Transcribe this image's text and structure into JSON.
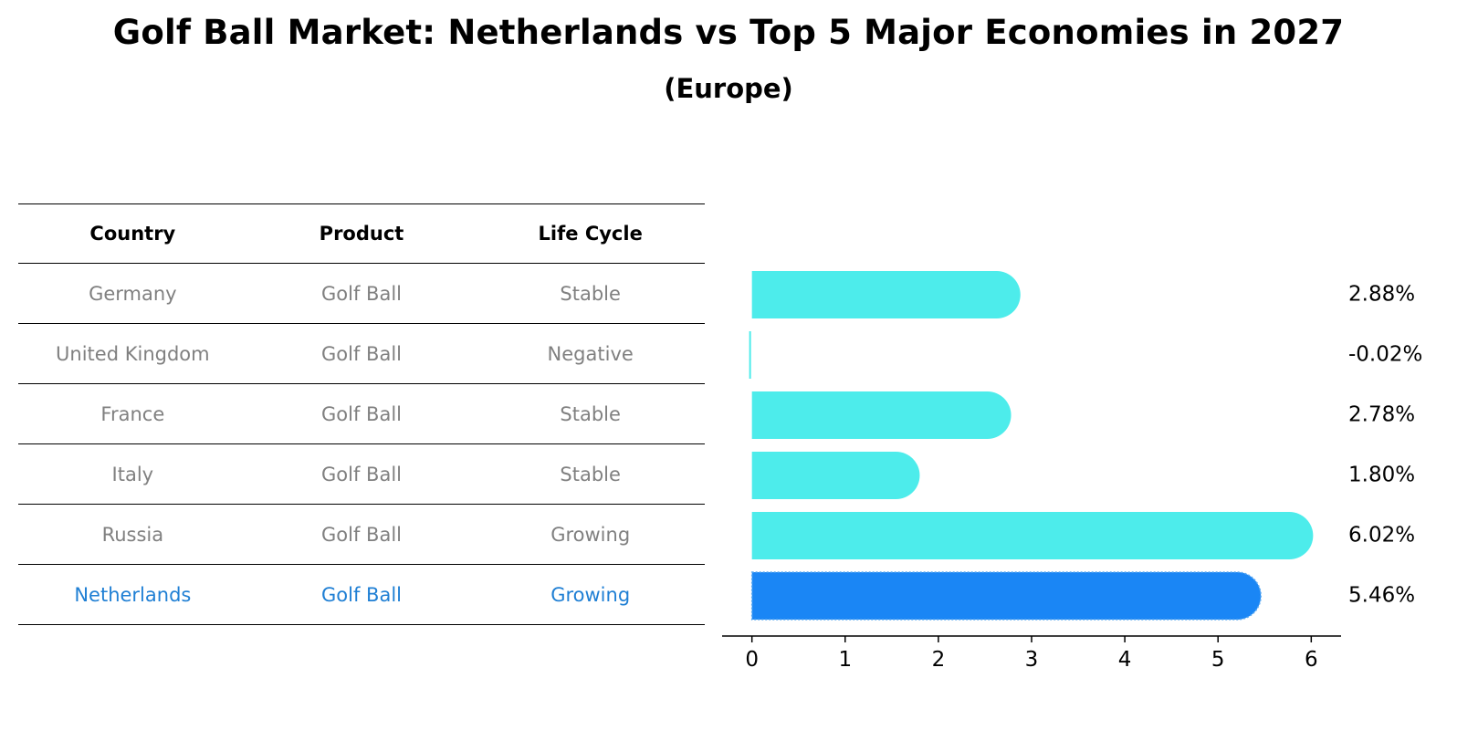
{
  "title": "Golf Ball Market: Netherlands vs Top 5 Major Economies in 2027",
  "subtitle": "(Europe)",
  "table": {
    "headers": [
      "Country",
      "Product",
      "Life Cycle"
    ],
    "rows": [
      {
        "country": "Germany",
        "product": "Golf Ball",
        "life_cycle": "Stable",
        "highlight": false
      },
      {
        "country": "United Kingdom",
        "product": "Golf Ball",
        "life_cycle": "Negative",
        "highlight": false
      },
      {
        "country": "France",
        "product": "Golf Ball",
        "life_cycle": "Stable",
        "highlight": false
      },
      {
        "country": "Italy",
        "product": "Golf Ball",
        "life_cycle": "Stable",
        "highlight": false
      },
      {
        "country": "Russia",
        "product": "Golf Ball",
        "life_cycle": "Growing",
        "highlight": false
      },
      {
        "country": "Netherlands",
        "product": "Golf Ball",
        "life_cycle": "Growing",
        "highlight": true
      }
    ]
  },
  "colors": {
    "bar": "#4deceb",
    "highlight_bar": "#1a86f5",
    "highlight_text": "#1f7fd4",
    "muted_text": "#808080"
  },
  "chart_data": {
    "type": "bar",
    "orientation": "horizontal",
    "categories": [
      "Germany",
      "United Kingdom",
      "France",
      "Italy",
      "Russia",
      "Netherlands"
    ],
    "values": [
      2.88,
      -0.02,
      2.78,
      1.8,
      6.02,
      5.46
    ],
    "value_labels": [
      "2.88%",
      "-0.02%",
      "2.78%",
      "1.80%",
      "6.02%",
      "5.46%"
    ],
    "highlight_category": "Netherlands",
    "xlim": [
      -0.32,
      6.32
    ],
    "xticks": [
      0,
      1,
      2,
      3,
      4,
      5,
      6
    ],
    "xtick_labels": [
      "0",
      "1",
      "2",
      "3",
      "4",
      "5",
      "6"
    ],
    "xlabel": "",
    "ylabel": "",
    "grid": false
  }
}
